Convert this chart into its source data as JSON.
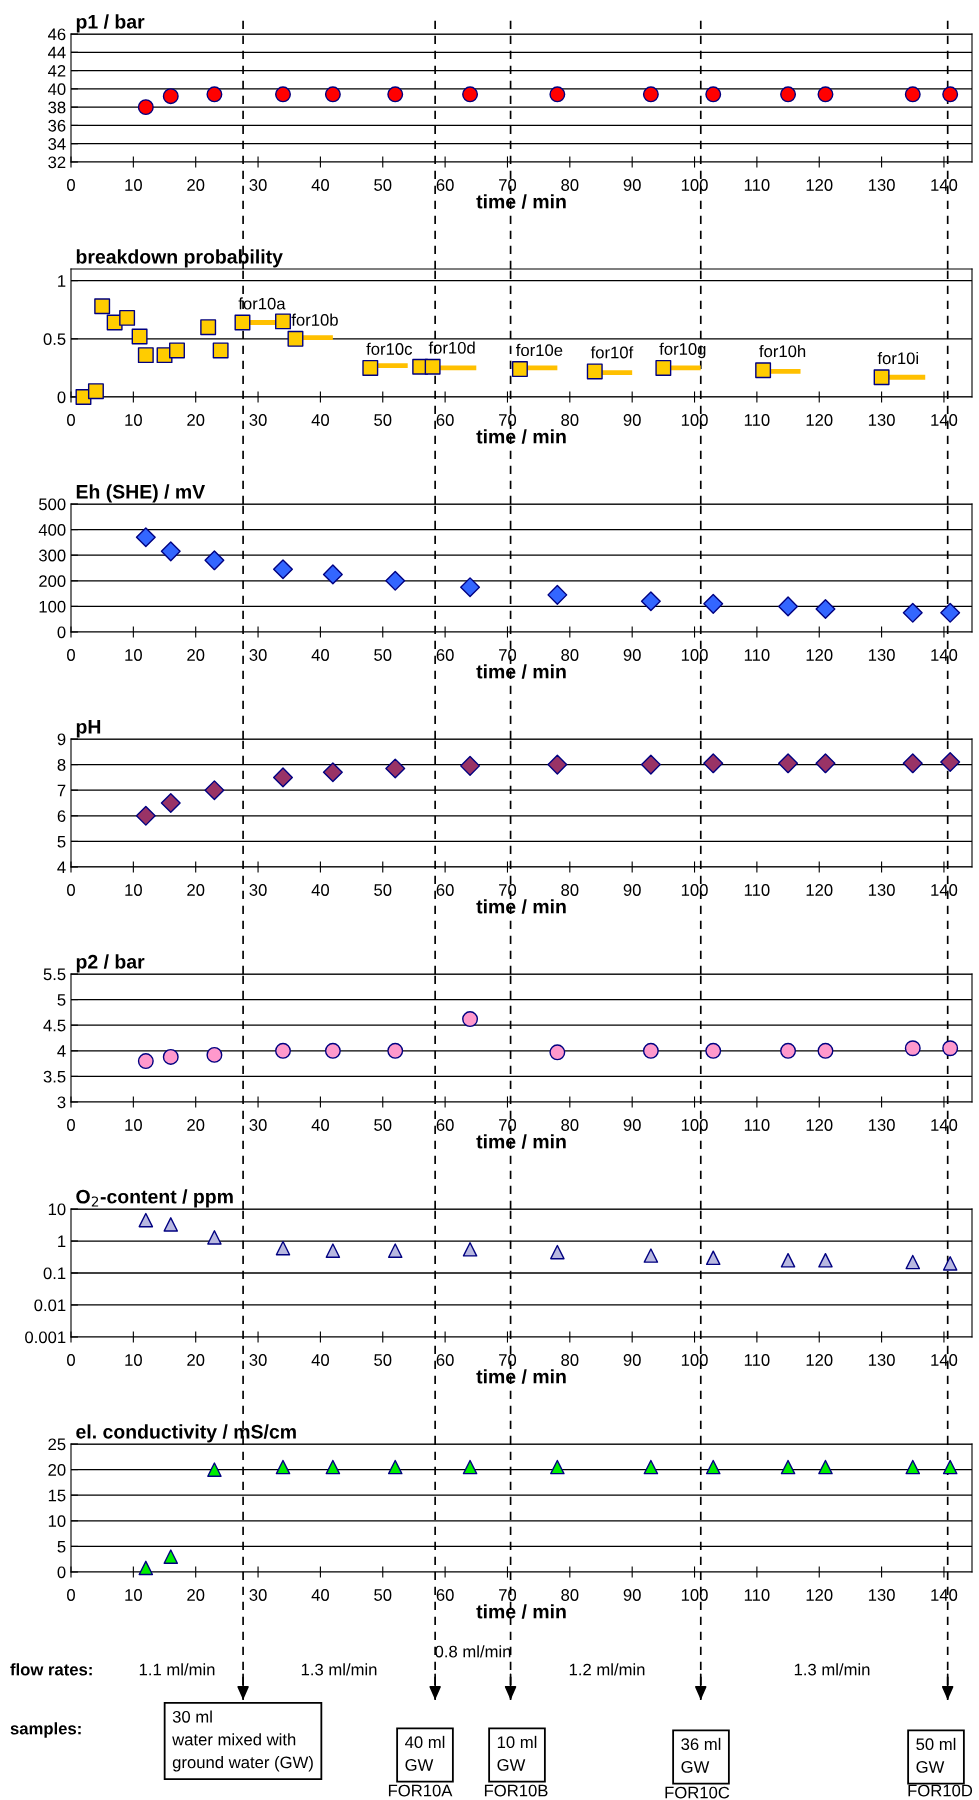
{
  "chart_data": [
    {
      "type": "scatter",
      "title": "p1 / bar",
      "xlabel": "time / min",
      "x": [
        12,
        16,
        23,
        34,
        42,
        52,
        64,
        78,
        93,
        103,
        115,
        121,
        135,
        141
      ],
      "marker": "circle",
      "grid": "y",
      "xlim": [
        0,
        144.5
      ],
      "xticks": [
        0,
        10,
        20,
        30,
        40,
        50,
        60,
        70,
        80,
        90,
        100,
        110,
        120,
        130,
        140
      ],
      "ylim": [
        32,
        46
      ],
      "yticks": [
        32,
        34,
        36,
        38,
        40,
        42,
        44,
        46
      ],
      "series": [
        {
          "color": "#ff0000",
          "values": [
            38,
            39.2,
            39.4,
            39.4,
            39.4,
            39.4,
            39.4,
            39.4,
            39.4,
            39.4,
            39.4,
            39.4,
            39.4,
            39.4
          ]
        }
      ],
      "ref_lines": [
        {
          "axis": "x",
          "value": 27.6,
          "color": "#000000",
          "line_style": "dashed"
        },
        {
          "axis": "x",
          "value": 58.4,
          "color": "#000000",
          "line_style": "dashed"
        },
        {
          "axis": "x",
          "value": 70.5,
          "color": "#000000",
          "line_style": "dashed"
        },
        {
          "axis": "x",
          "value": 101,
          "color": "#000000",
          "line_style": "dashed"
        },
        {
          "axis": "x",
          "value": 140.6,
          "color": "#000000",
          "line_style": "dashed"
        }
      ]
    },
    {
      "type": "scatter",
      "title": "breakdown probability",
      "xlabel": "time / min",
      "marker": "square",
      "grid": "y",
      "xlim": [
        0,
        144.5
      ],
      "xticks": [
        0,
        10,
        20,
        30,
        40,
        50,
        60,
        70,
        80,
        90,
        100,
        110,
        120,
        130,
        140
      ],
      "ylim": [
        0,
        1.1
      ],
      "yticks": [
        0,
        0.5,
        1
      ],
      "series": [
        {
          "color": "#ffcc00",
          "x": [
            2,
            4,
            5,
            7,
            9,
            11,
            12,
            15,
            17,
            22,
            24,
            27.5,
            34,
            36,
            48,
            56,
            58,
            72,
            84,
            95,
            111,
            130
          ],
          "values": [
            0,
            0.05,
            0.78,
            0.64,
            0.68,
            0.52,
            0.36,
            0.36,
            0.4,
            0.6,
            0.4,
            0.64,
            0.65,
            0.5,
            0.25,
            0.26,
            0.26,
            0.24,
            0.22,
            0.25,
            0.23,
            0.17
          ]
        },
        {
          "type": "line",
          "marker": "none",
          "color": "#ffc000",
          "x": [
            28,
            34,
            35,
            36,
            42,
            43,
            48,
            54,
            55,
            58,
            65,
            66,
            72,
            78,
            79,
            84,
            90,
            91,
            95,
            101,
            102,
            111,
            117,
            118,
            130,
            137
          ],
          "values": [
            0.64,
            0.64,
            null,
            0.51,
            0.51,
            null,
            0.27,
            0.27,
            null,
            0.25,
            0.25,
            null,
            0.25,
            0.25,
            null,
            0.21,
            0.21,
            null,
            0.25,
            0.25,
            null,
            0.22,
            0.22,
            null,
            0.17,
            0.17
          ]
        }
      ],
      "annotations": [
        {
          "text": "for10a",
          "x": 27.5,
          "y": 0.64
        },
        {
          "text": "for10b",
          "x": 36,
          "y": 0.5
        },
        {
          "text": "for10c",
          "x": 48,
          "y": 0.25
        },
        {
          "text": "for10d",
          "x": 58,
          "y": 0.26
        },
        {
          "text": "for10e",
          "x": 72,
          "y": 0.24
        },
        {
          "text": "for10f",
          "x": 84,
          "y": 0.22
        },
        {
          "text": "for10g",
          "x": 95,
          "y": 0.25
        },
        {
          "text": "for10h",
          "x": 111,
          "y": 0.23
        },
        {
          "text": "for10i",
          "x": 130,
          "y": 0.17
        }
      ],
      "ref_lines": [
        {
          "axis": "x",
          "value": 27.6,
          "color": "#000000",
          "line_style": "dashed"
        },
        {
          "axis": "x",
          "value": 58.4,
          "color": "#000000",
          "line_style": "dashed"
        },
        {
          "axis": "x",
          "value": 70.5,
          "color": "#000000",
          "line_style": "dashed"
        },
        {
          "axis": "x",
          "value": 101,
          "color": "#000000",
          "line_style": "dashed"
        },
        {
          "axis": "x",
          "value": 140.6,
          "color": "#000000",
          "line_style": "dashed"
        }
      ]
    },
    {
      "type": "scatter",
      "title": "Eh (SHE) / mV",
      "xlabel": "time / min",
      "x": [
        12,
        16,
        23,
        34,
        42,
        52,
        64,
        78,
        93,
        103,
        115,
        121,
        135,
        141
      ],
      "marker": "diamond",
      "grid": "y",
      "xlim": [
        0,
        144.5
      ],
      "xticks": [
        0,
        10,
        20,
        30,
        40,
        50,
        60,
        70,
        80,
        90,
        100,
        110,
        120,
        130,
        140
      ],
      "ylim": [
        0,
        500
      ],
      "yticks": [
        0,
        100,
        200,
        300,
        400,
        500
      ],
      "series": [
        {
          "color": "#3366ff",
          "values": [
            370,
            315,
            280,
            245,
            225,
            200,
            175,
            145,
            120,
            110,
            100,
            90,
            75,
            75
          ]
        }
      ],
      "ref_lines": [
        {
          "axis": "x",
          "value": 27.6,
          "color": "#000000",
          "line_style": "dashed"
        },
        {
          "axis": "x",
          "value": 58.4,
          "color": "#000000",
          "line_style": "dashed"
        },
        {
          "axis": "x",
          "value": 70.5,
          "color": "#000000",
          "line_style": "dashed"
        },
        {
          "axis": "x",
          "value": 101,
          "color": "#000000",
          "line_style": "dashed"
        },
        {
          "axis": "x",
          "value": 140.6,
          "color": "#000000",
          "line_style": "dashed"
        }
      ]
    },
    {
      "type": "scatter",
      "title": "pH",
      "xlabel": "time / min",
      "x": [
        12,
        16,
        23,
        34,
        42,
        52,
        64,
        78,
        93,
        103,
        115,
        121,
        135,
        141
      ],
      "marker": "diamond",
      "grid": "y",
      "xlim": [
        0,
        144.5
      ],
      "xticks": [
        0,
        10,
        20,
        30,
        40,
        50,
        60,
        70,
        80,
        90,
        100,
        110,
        120,
        130,
        140
      ],
      "ylim": [
        4,
        9
      ],
      "yticks": [
        4,
        5,
        6,
        7,
        8,
        9
      ],
      "series": [
        {
          "color": "#993366",
          "values": [
            6.0,
            6.5,
            7.0,
            7.5,
            7.7,
            7.85,
            7.95,
            8.0,
            8.0,
            8.05,
            8.05,
            8.05,
            8.05,
            8.1
          ]
        }
      ],
      "ref_lines": [
        {
          "axis": "x",
          "value": 27.6,
          "color": "#000000",
          "line_style": "dashed"
        },
        {
          "axis": "x",
          "value": 58.4,
          "color": "#000000",
          "line_style": "dashed"
        },
        {
          "axis": "x",
          "value": 70.5,
          "color": "#000000",
          "line_style": "dashed"
        },
        {
          "axis": "x",
          "value": 101,
          "color": "#000000",
          "line_style": "dashed"
        },
        {
          "axis": "x",
          "value": 140.6,
          "color": "#000000",
          "line_style": "dashed"
        }
      ]
    },
    {
      "type": "scatter",
      "title": "p2 / bar",
      "xlabel": "time / min",
      "x": [
        12,
        16,
        23,
        34,
        42,
        52,
        64,
        78,
        93,
        103,
        115,
        121,
        135,
        141
      ],
      "marker": "circle",
      "grid": "y",
      "xlim": [
        0,
        144.5
      ],
      "xticks": [
        0,
        10,
        20,
        30,
        40,
        50,
        60,
        70,
        80,
        90,
        100,
        110,
        120,
        130,
        140
      ],
      "ylim": [
        3,
        5.5
      ],
      "yticks": [
        3,
        3.5,
        4,
        4.5,
        5,
        5.5
      ],
      "series": [
        {
          "color": "#ff99cc",
          "values": [
            3.8,
            3.88,
            3.92,
            4.0,
            4.0,
            4.0,
            4.62,
            3.97,
            4.0,
            4.0,
            4.0,
            4.0,
            4.05,
            4.05
          ]
        }
      ],
      "ref_lines": [
        {
          "axis": "x",
          "value": 27.6,
          "color": "#000000",
          "line_style": "dashed"
        },
        {
          "axis": "x",
          "value": 58.4,
          "color": "#000000",
          "line_style": "dashed"
        },
        {
          "axis": "x",
          "value": 70.5,
          "color": "#000000",
          "line_style": "dashed"
        },
        {
          "axis": "x",
          "value": 101,
          "color": "#000000",
          "line_style": "dashed"
        },
        {
          "axis": "x",
          "value": 140.6,
          "color": "#000000",
          "line_style": "dashed"
        }
      ]
    },
    {
      "type": "scatter",
      "title": "O$_{2}$-content / ppm",
      "xlabel": "time / min",
      "x": [
        12,
        16,
        23,
        34,
        42,
        52,
        64,
        78,
        93,
        103,
        115,
        121,
        135,
        141
      ],
      "marker": "triangle",
      "grid": "y",
      "log": "y",
      "xlim": [
        0,
        144.5
      ],
      "xticks": [
        0,
        10,
        20,
        30,
        40,
        50,
        60,
        70,
        80,
        90,
        100,
        110,
        120,
        130,
        140
      ],
      "ylim": [
        0.001,
        10
      ],
      "yticks": [
        0.001,
        0.01,
        0.1,
        1,
        10
      ],
      "series": [
        {
          "color": "#b8b8e0",
          "values": [
            4.5,
            3.3,
            1.3,
            0.6,
            0.5,
            0.5,
            0.55,
            0.45,
            0.35,
            0.3,
            0.25,
            0.25,
            0.22,
            0.2
          ]
        }
      ],
      "ref_lines": [
        {
          "axis": "x",
          "value": 27.6,
          "color": "#000000",
          "line_style": "dashed"
        },
        {
          "axis": "x",
          "value": 58.4,
          "color": "#000000",
          "line_style": "dashed"
        },
        {
          "axis": "x",
          "value": 70.5,
          "color": "#000000",
          "line_style": "dashed"
        },
        {
          "axis": "x",
          "value": 101,
          "color": "#000000",
          "line_style": "dashed"
        },
        {
          "axis": "x",
          "value": 140.6,
          "color": "#000000",
          "line_style": "dashed"
        }
      ]
    },
    {
      "type": "scatter",
      "title": "el. conductivity / mS/cm",
      "xlabel": "time / min",
      "x": [
        12,
        16,
        23,
        34,
        42,
        52,
        64,
        78,
        93,
        103,
        115,
        121,
        135,
        141
      ],
      "marker": "triangle",
      "grid": "y",
      "xlim": [
        0,
        144.5
      ],
      "xticks": [
        0,
        10,
        20,
        30,
        40,
        50,
        60,
        70,
        80,
        90,
        100,
        110,
        120,
        130,
        140
      ],
      "ylim": [
        0,
        25
      ],
      "yticks": [
        0,
        5,
        10,
        15,
        20,
        25
      ],
      "series": [
        {
          "color": "#00ee00",
          "values": [
            0.8,
            3,
            20,
            20.5,
            20.5,
            20.5,
            20.5,
            20.5,
            20.5,
            20.5,
            20.5,
            20.5,
            20.5,
            20.5
          ]
        }
      ],
      "ref_lines": [
        {
          "axis": "x",
          "value": 27.6,
          "color": "#000000",
          "line_style": "dashed"
        },
        {
          "axis": "x",
          "value": 58.4,
          "color": "#000000",
          "line_style": "dashed"
        },
        {
          "axis": "x",
          "value": 70.5,
          "color": "#000000",
          "line_style": "dashed"
        },
        {
          "axis": "x",
          "value": 101,
          "color": "#000000",
          "line_style": "dashed"
        },
        {
          "axis": "x",
          "value": 140.6,
          "color": "#000000",
          "line_style": "dashed"
        }
      ]
    },
    {
      "type": "other",
      "annotations": [
        "flow rates:",
        "samples:",
        "1.1 ml/min",
        "1.3 ml/min",
        "0.8 ml/min",
        "1.2 ml/min",
        "1.3 ml/min",
        "30 ml\nwater mixed with\nground water (GW)",
        "40 ml\nGW",
        "10 ml\nGW",
        "36 ml\nGW",
        "50 ml\nGW",
        "FOR10A",
        "FOR10B",
        "FOR10C",
        "FOR10D"
      ]
    }
  ]
}
